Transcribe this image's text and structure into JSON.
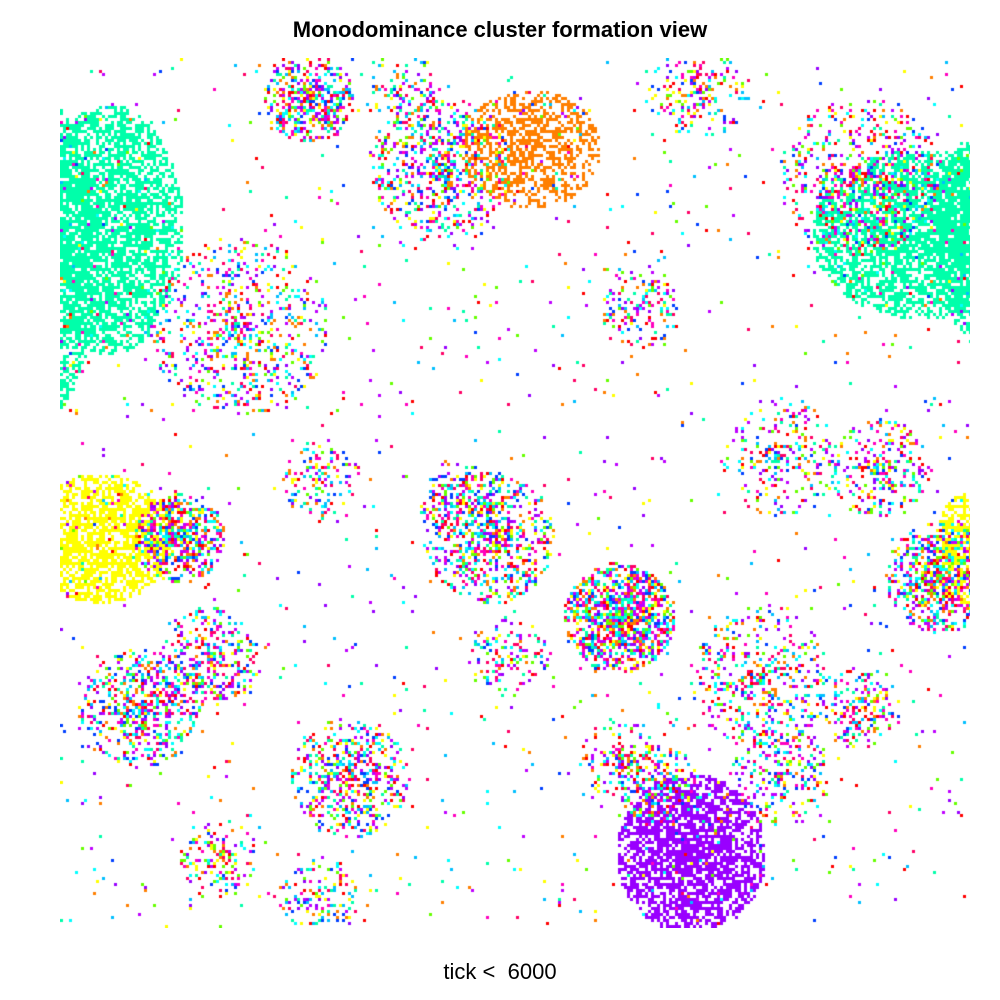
{
  "title": "Monodominance cluster formation view",
  "footer": "tick <  6000",
  "grid": {
    "background": "#ffffff",
    "species_palette": [
      "#00ffaa",
      "#ffff00",
      "#9900ff",
      "#ff7f00",
      "#00bfff",
      "#ff00bf",
      "#66ff00",
      "#0040ff",
      "#ff0000",
      "#00ffff",
      "#bf00ff",
      "#ff0066"
    ],
    "dominant_clusters": [
      {
        "species": "#00ffaa",
        "location": "top-left"
      },
      {
        "species": "#00ffaa",
        "location": "top-right"
      },
      {
        "species": "#ffff00",
        "location": "middle-left"
      },
      {
        "species": "#ffff00",
        "location": "middle-right"
      },
      {
        "species": "#ff7f00",
        "location": "top-center"
      },
      {
        "species": "#9900ff",
        "location": "bottom-center"
      }
    ]
  }
}
